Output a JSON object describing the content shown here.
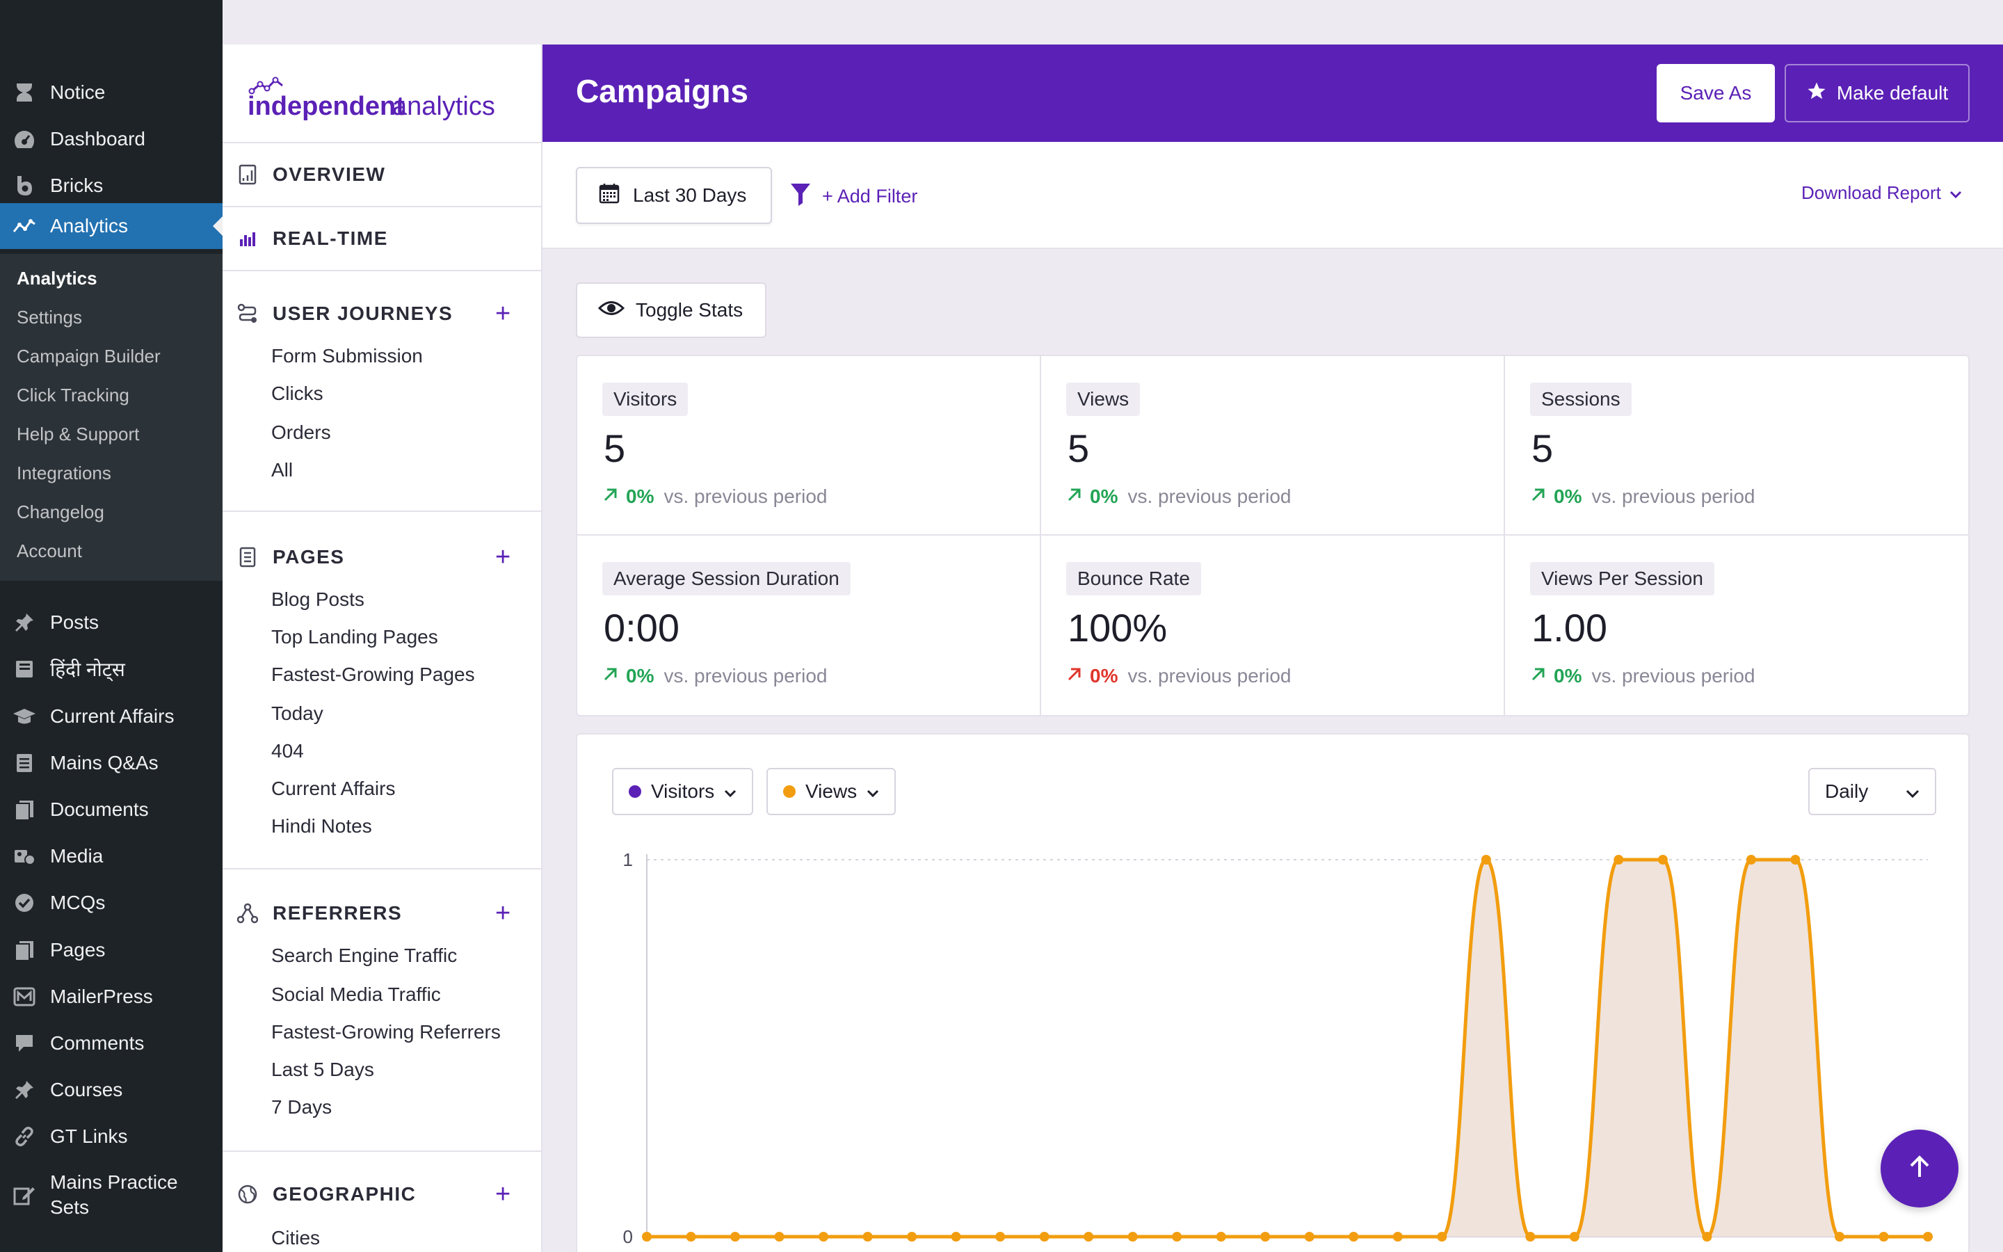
{
  "wp_menu": {
    "items": [
      {
        "label": "Notice",
        "icon": "hourglass-icon"
      },
      {
        "label": "Dashboard",
        "icon": "dashboard-icon"
      },
      {
        "label": "Bricks",
        "icon": "bricks-icon"
      },
      {
        "label": "Analytics",
        "icon": "analytics-icon"
      },
      {
        "label": "Posts",
        "icon": "pin-icon"
      },
      {
        "label": "हिंदी नोट्स",
        "icon": "book-icon"
      },
      {
        "label": "Current Affairs",
        "icon": "graduation-cap-icon"
      },
      {
        "label": "Mains Q&As",
        "icon": "document-icon"
      },
      {
        "label": "Documents",
        "icon": "pages-icon"
      },
      {
        "label": "Media",
        "icon": "media-icon"
      },
      {
        "label": "MCQs",
        "icon": "check-circle-icon"
      },
      {
        "label": "Pages",
        "icon": "pages-icon"
      },
      {
        "label": "MailerPress",
        "icon": "mail-icon"
      },
      {
        "label": "Comments",
        "icon": "comment-icon"
      },
      {
        "label": "Courses",
        "icon": "pin-icon"
      },
      {
        "label": "GT Links",
        "icon": "link-icon"
      },
      {
        "label": "Mains Practice Sets",
        "icon": "edit-icon"
      }
    ],
    "submenu": [
      "Analytics",
      "Settings",
      "Campaign Builder",
      "Click Tracking",
      "Help & Support",
      "Integrations",
      "Changelog",
      "Account"
    ]
  },
  "ia_nav": {
    "logo_part1": "independent",
    "logo_part2": "analytics",
    "overview": "OVERVIEW",
    "realtime": "REAL-TIME",
    "user_journeys": {
      "title": "USER JOURNEYS",
      "links": [
        "Form Submission",
        "Clicks",
        "Orders",
        "All"
      ]
    },
    "pages": {
      "title": "PAGES",
      "links": [
        "Blog Posts",
        "Top Landing Pages",
        "Fastest-Growing Pages",
        "Today",
        "404",
        "Current Affairs",
        "Hindi Notes"
      ]
    },
    "referrers": {
      "title": "REFERRERS",
      "links": [
        "Search Engine Traffic",
        "Social Media Traffic",
        "Fastest-Growing Referrers",
        "Last 5 Days",
        "7 Days"
      ]
    },
    "geographic": {
      "title": "GEOGRAPHIC",
      "links": [
        "Cities"
      ]
    },
    "plus": "+"
  },
  "header": {
    "title": "Campaigns",
    "save_as": "Save As",
    "make_default": "Make default"
  },
  "toolbar": {
    "date_range": "Last 30 Days",
    "add_filter": "+ Add Filter",
    "download_report": "Download Report"
  },
  "toggle_stats": "Toggle Stats",
  "stats": [
    {
      "label": "Visitors",
      "value": "5",
      "change": "0%",
      "direction": "up",
      "suffix": "vs. previous period"
    },
    {
      "label": "Views",
      "value": "5",
      "change": "0%",
      "direction": "up",
      "suffix": "vs. previous period"
    },
    {
      "label": "Sessions",
      "value": "5",
      "change": "0%",
      "direction": "up",
      "suffix": "vs. previous period"
    },
    {
      "label": "Average Session Duration",
      "value": "0:00",
      "change": "0%",
      "direction": "up",
      "suffix": "vs. previous period"
    },
    {
      "label": "Bounce Rate",
      "value": "100%",
      "change": "0%",
      "direction": "down",
      "suffix": "vs. previous period"
    },
    {
      "label": "Views Per Session",
      "value": "1.00",
      "change": "0%",
      "direction": "up",
      "suffix": "vs. previous period"
    }
  ],
  "chart_controls": {
    "primary_metric": "Visitors",
    "secondary_metric": "Views",
    "interval": "Daily"
  },
  "colors": {
    "brand": "#5b21b6",
    "visitors": "#5b21b6",
    "views": "#f29d0f",
    "area_fill": "#efe3dc",
    "up": "#22a455",
    "down": "#e0352b"
  },
  "chart_data": {
    "type": "line",
    "ylim": [
      0,
      1
    ],
    "y_ticks": [
      "0",
      "1"
    ],
    "series": [
      {
        "name": "Visitors",
        "values": [
          0,
          0,
          0,
          0,
          0,
          0,
          0,
          0,
          0,
          0,
          0,
          0,
          0,
          0,
          0,
          0,
          0,
          0,
          0,
          1,
          0,
          0,
          1,
          1,
          0,
          1,
          1,
          0,
          0,
          0
        ]
      },
      {
        "name": "Views",
        "values": [
          0,
          0,
          0,
          0,
          0,
          0,
          0,
          0,
          0,
          0,
          0,
          0,
          0,
          0,
          0,
          0,
          0,
          0,
          0,
          1,
          0,
          0,
          1,
          1,
          0,
          1,
          1,
          0,
          0,
          0
        ]
      }
    ]
  }
}
